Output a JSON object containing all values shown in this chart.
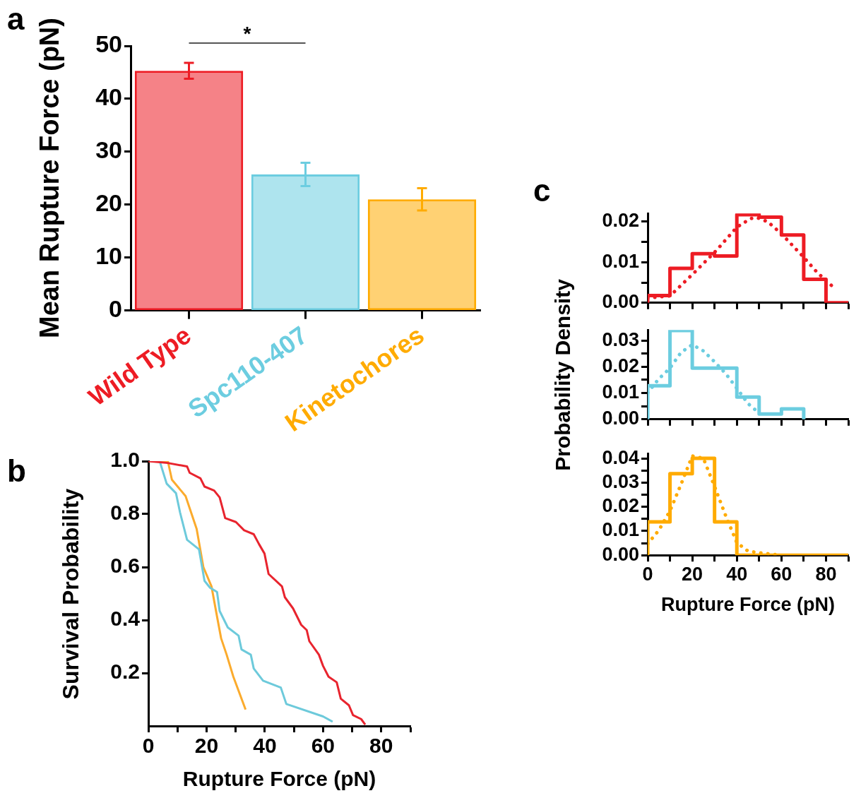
{
  "chart_data": [
    {
      "type": "bar",
      "title": "a",
      "ylabel": "Mean Rupture Force (pN)",
      "categories": [
        "Wild Type",
        "Spc110-407",
        "Kinetochores"
      ],
      "values": [
        45.3,
        25.7,
        21.0
      ],
      "errors": [
        1.5,
        2.2,
        2.1
      ],
      "colors": [
        "#ed1c24",
        "#6ccde0",
        "#ffab00"
      ],
      "ylim": [
        0,
        50
      ],
      "yticks": [
        0,
        10,
        20,
        30,
        40,
        50
      ],
      "annotations": [
        "*"
      ]
    },
    {
      "type": "line",
      "title": "b",
      "xlabel": "Rupture Force (pN)",
      "ylabel": "Survival Probability",
      "xlim": [
        0,
        90
      ],
      "xticks": [
        0,
        {
          "value": 10,
          "label": null
        },
        20,
        {
          "value": 30,
          "label": null
        },
        40,
        {
          "value": 50,
          "label": null
        },
        60,
        {
          "value": 70,
          "label": null
        },
        80,
        {
          "value": 90,
          "label": null
        }
      ],
      "ylim": [
        0,
        1
      ],
      "yticks": [
        0.2,
        0.4,
        0.6,
        0.8,
        {
          "value": 1,
          "label": "1.0"
        }
      ],
      "series": [
        {
          "color": "#e8242e",
          "x": [
            0,
            6.7,
            13.3,
            14.2,
            17.9,
            19.3,
            22.6,
            24.5,
            26.4,
            30.1,
            32.9,
            36.2,
            38,
            39.9,
            41.3,
            45.9,
            46.9,
            49.7,
            52.5,
            54.4,
            55.3,
            58.6,
            60,
            61.9,
            64.7,
            66.1,
            68.9,
            70.3,
            73.1,
            74.5
          ],
          "values": [
            1,
            0.993,
            0.98,
            0.956,
            0.935,
            0.904,
            0.889,
            0.863,
            0.785,
            0.77,
            0.739,
            0.724,
            0.687,
            0.651,
            0.574,
            0.527,
            0.486,
            0.444,
            0.382,
            0.362,
            0.32,
            0.269,
            0.227,
            0.186,
            0.165,
            0.103,
            0.078,
            0.041,
            0.026,
            0.005
          ]
        },
        {
          "color": "#6dcadb",
          "x": [
            3.9,
            6.3,
            9.5,
            10.9,
            13.3,
            17.4,
            19.3,
            21.2,
            23.6,
            24.5,
            27.3,
            31,
            32,
            35.2,
            36.2,
            39.4,
            45.5,
            47.4,
            60,
            63.3
          ],
          "values": [
            1,
            0.915,
            0.879,
            0.806,
            0.703,
            0.667,
            0.548,
            0.522,
            0.506,
            0.434,
            0.372,
            0.341,
            0.289,
            0.269,
            0.217,
            0.171,
            0.145,
            0.083,
            0.036,
            0.016
          ]
        },
        {
          "color": "#fbab2d",
          "x": [
            0,
            6.7,
            8.1,
            12.8,
            16.6,
            18.9,
            21.7,
            23.6,
            25,
            26.9,
            29.2,
            33.4
          ],
          "values": [
            1,
            1,
            0.93,
            0.868,
            0.744,
            0.6,
            0.527,
            0.413,
            0.331,
            0.269,
            0.186,
            0.062
          ]
        }
      ]
    },
    {
      "type": "histogram",
      "title": "c",
      "tick_labels": "y",
      "color": "#ed1c24",
      "bins": [
        0,
        10,
        20,
        30,
        40,
        50,
        60,
        70,
        80,
        90
      ],
      "values": [
        0.0018,
        0.0085,
        0.0121,
        0.0115,
        0.0217,
        0.0211,
        0.0167,
        0.0058,
        0
      ],
      "xlim": [
        0,
        90
      ],
      "xticks": [
        0,
        10,
        20,
        30,
        40,
        50,
        60,
        70,
        80,
        90
      ],
      "ylim": [
        0,
        0.022
      ],
      "yticks": [
        {
          "value": 0,
          "label": "0.00"
        },
        {
          "value": 0.005,
          "label": null
        },
        0.01,
        {
          "value": 0.015,
          "label": null
        },
        0.02
      ],
      "series": [
        {
          "type": "line",
          "line_style": "dotted",
          "color": "#ed1c24",
          "x": [
            0,
            10,
            21,
            31,
            40,
            46,
            49,
            54,
            60,
            70,
            76,
            84
          ],
          "values": [
            0.0012,
            0.0017,
            0.0075,
            0.013,
            0.0186,
            0.0207,
            0.021,
            0.0199,
            0.017,
            0.0112,
            0.0075,
            0.0035
          ]
        }
      ]
    },
    {
      "type": "histogram",
      "ylabel": "Probability Density",
      "tick_labels": "y",
      "color": "#6ccde0",
      "bins": [
        0,
        10,
        20,
        30,
        40,
        50,
        60,
        70
      ],
      "values": [
        0.0128,
        0.0338,
        0.0195,
        0.0195,
        0.0085,
        0.002,
        0.004
      ],
      "xlim": [
        0,
        90
      ],
      "xticks": [
        0,
        10,
        20,
        30,
        40,
        50,
        60,
        70,
        80,
        90
      ],
      "ylim": [
        0,
        0.034
      ],
      "yticks": [
        {
          "value": 0,
          "label": "0.00"
        },
        {
          "value": 0.005,
          "label": null
        },
        0.01,
        {
          "value": 0.015,
          "label": null
        },
        0.02,
        {
          "value": 0.025,
          "label": null
        },
        0.03
      ],
      "series": [
        {
          "type": "line",
          "line_style": "dotted",
          "color": "#6ccde0",
          "x": [
            0,
            5,
            10,
            15,
            20,
            25,
            30,
            35,
            40,
            45,
            50
          ],
          "values": [
            0.0101,
            0.0154,
            0.0195,
            0.0255,
            0.0284,
            0.026,
            0.0219,
            0.0174,
            0.0118,
            0.006,
            0.0024
          ]
        }
      ]
    },
    {
      "type": "histogram",
      "xlabel": "Rupture Force (pN)",
      "color": "#ffab00",
      "bins": [
        0,
        10,
        20,
        30,
        40,
        50,
        60,
        70,
        80,
        90
      ],
      "values": [
        0.0138,
        0.0337,
        0.04,
        0.0138,
        0,
        0,
        0,
        0,
        0
      ],
      "xlim": [
        0,
        90
      ],
      "xticks": [
        0,
        {
          "value": 10,
          "label": null
        },
        20,
        {
          "value": 30,
          "label": null
        },
        40,
        {
          "value": 50,
          "label": null
        },
        60,
        {
          "value": 70,
          "label": null
        },
        80,
        {
          "value": 90,
          "label": null
        }
      ],
      "ylim": [
        0,
        0.042
      ],
      "yticks": [
        {
          "value": 0,
          "label": "0.00"
        },
        {
          "value": 0.005,
          "label": null
        },
        0.01,
        {
          "value": 0.015,
          "label": null
        },
        0.02,
        {
          "value": 0.025,
          "label": null
        },
        0.03,
        {
          "value": 0.035,
          "label": null
        },
        0.04
      ],
      "series": [
        {
          "type": "line",
          "line_style": "dotted",
          "color": "#ffab00",
          "x": [
            0,
            5,
            10,
            15,
            20,
            25,
            30,
            35,
            40,
            45,
            50,
            60
          ],
          "values": [
            0.0047,
            0.0103,
            0.0183,
            0.0294,
            0.041,
            0.04,
            0.0284,
            0.0163,
            0.0052,
            0.0017,
            0.001,
            0
          ]
        }
      ]
    }
  ]
}
